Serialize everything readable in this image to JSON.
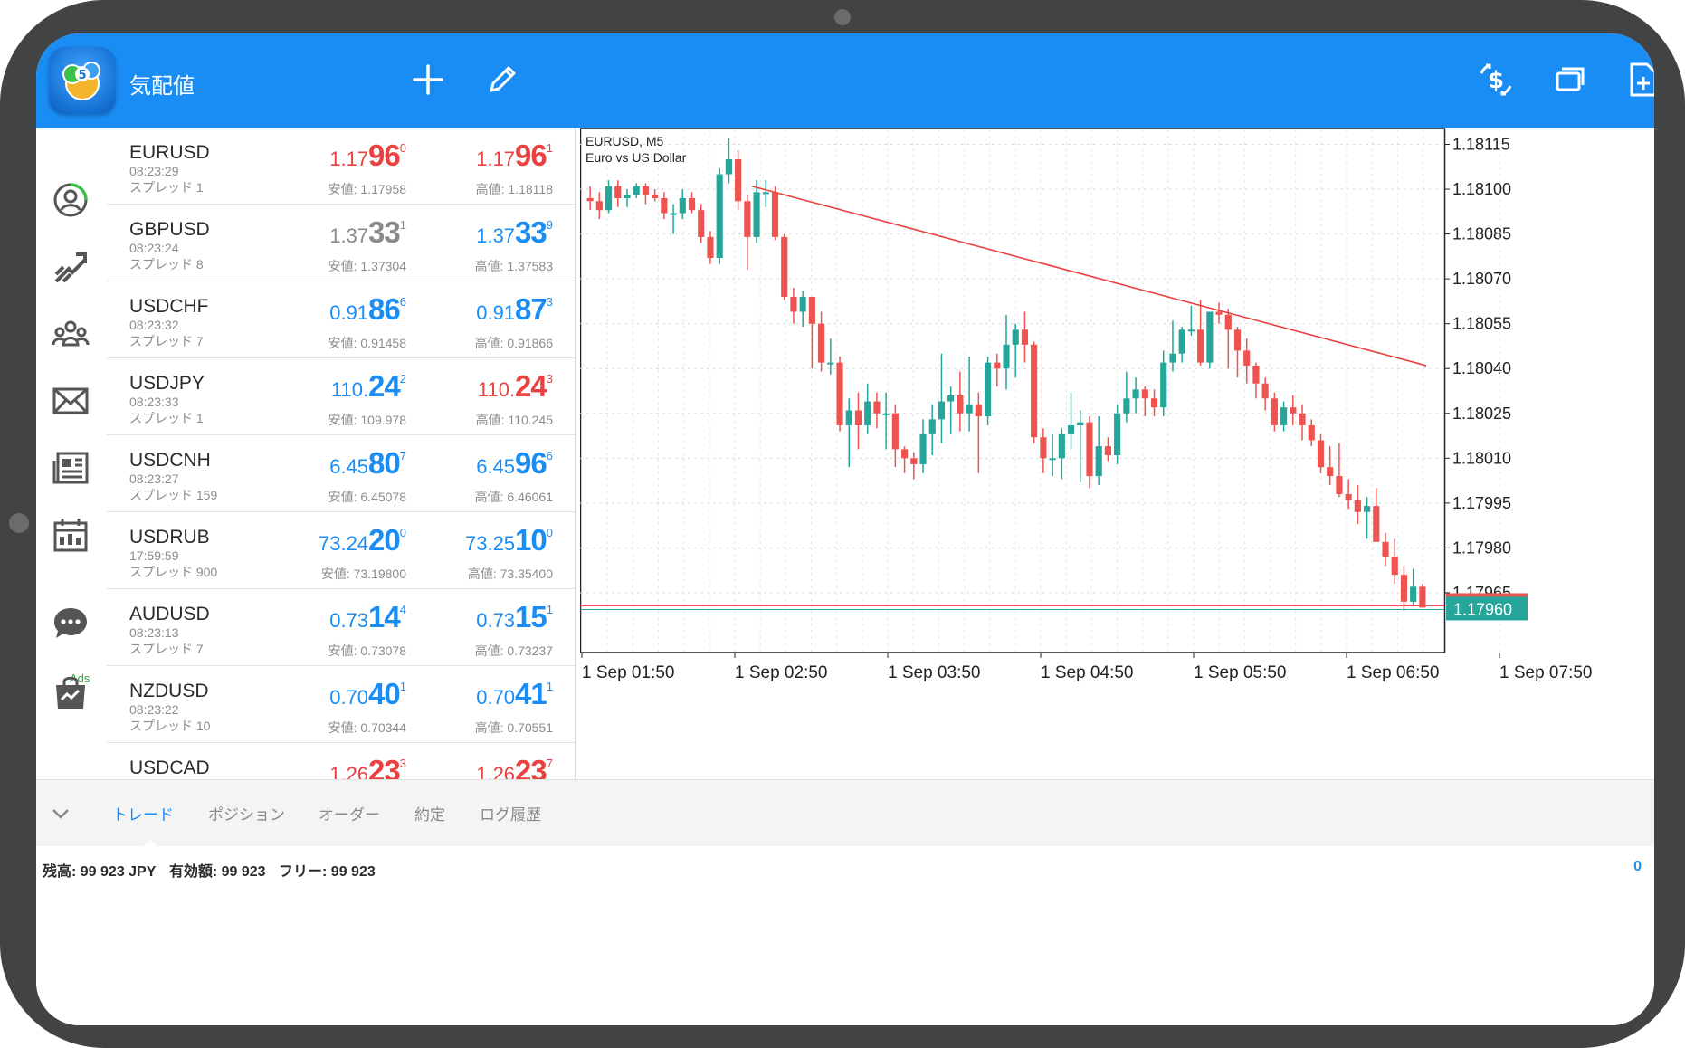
{
  "header": {
    "title": "気配値",
    "icons": [
      "plus-icon",
      "pencil-icon",
      "dollar-exchange-icon",
      "windows-icon",
      "add-document-icon"
    ]
  },
  "sidebar": {
    "icons": [
      "quotes-icon",
      "chart-icon",
      "community-icon",
      "mail-icon",
      "news-icon",
      "calendar-icon",
      "chat-icon",
      "market-bag-icon"
    ],
    "ads_label": "Ads"
  },
  "quotes": [
    {
      "symbol": "EURUSD",
      "time": "08:23:29",
      "spread": "スプレッド 1",
      "bid": {
        "pre": "1.17",
        "big": "96",
        "sup": "0",
        "dir": "down"
      },
      "ask": {
        "pre": "1.17",
        "big": "96",
        "sup": "1",
        "dir": "down"
      },
      "low": "安値: 1.17958",
      "high": "高値: 1.18118"
    },
    {
      "symbol": "GBPUSD",
      "time": "08:23:24",
      "spread": "スプレッド 8",
      "bid": {
        "pre": "1.37",
        "big": "33",
        "sup": "1",
        "dir": "flat"
      },
      "ask": {
        "pre": "1.37",
        "big": "33",
        "sup": "9",
        "dir": "up"
      },
      "low": "安値: 1.37304",
      "high": "高値: 1.37583"
    },
    {
      "symbol": "USDCHF",
      "time": "08:23:32",
      "spread": "スプレッド 7",
      "bid": {
        "pre": "0.91",
        "big": "86",
        "sup": "6",
        "dir": "up"
      },
      "ask": {
        "pre": "0.91",
        "big": "87",
        "sup": "3",
        "dir": "up"
      },
      "low": "安値: 0.91458",
      "high": "高値: 0.91866"
    },
    {
      "symbol": "USDJPY",
      "time": "08:23:33",
      "spread": "スプレッド 1",
      "bid": {
        "pre": "110.",
        "big": "24",
        "sup": "2",
        "dir": "up"
      },
      "ask": {
        "pre": "110.",
        "big": "24",
        "sup": "3",
        "dir": "down"
      },
      "low": "安値: 109.978",
      "high": "高値: 110.245"
    },
    {
      "symbol": "USDCNH",
      "time": "08:23:27",
      "spread": "スプレッド 159",
      "bid": {
        "pre": "6.45",
        "big": "80",
        "sup": "7",
        "dir": "up"
      },
      "ask": {
        "pre": "6.45",
        "big": "96",
        "sup": "6",
        "dir": "up"
      },
      "low": "安値: 6.45078",
      "high": "高値: 6.46061"
    },
    {
      "symbol": "USDRUB",
      "time": "17:59:59",
      "spread": "スプレッド 900",
      "bid": {
        "pre": "73.24",
        "big": "20",
        "sup": "0",
        "dir": "up"
      },
      "ask": {
        "pre": "73.25",
        "big": "10",
        "sup": "0",
        "dir": "up"
      },
      "low": "安値: 73.19800",
      "high": "高値: 73.35400"
    },
    {
      "symbol": "AUDUSD",
      "time": "08:23:13",
      "spread": "スプレッド 7",
      "bid": {
        "pre": "0.73",
        "big": "14",
        "sup": "4",
        "dir": "up"
      },
      "ask": {
        "pre": "0.73",
        "big": "15",
        "sup": "1",
        "dir": "up"
      },
      "low": "安値: 0.73078",
      "high": "高値: 0.73237"
    },
    {
      "symbol": "NZDUSD",
      "time": "08:23:22",
      "spread": "スプレッド 10",
      "bid": {
        "pre": "0.70",
        "big": "40",
        "sup": "1",
        "dir": "up"
      },
      "ask": {
        "pre": "0.70",
        "big": "41",
        "sup": "1",
        "dir": "up"
      },
      "low": "安値: 0.70344",
      "high": "高値: 0.70551"
    },
    {
      "symbol": "USDCAD",
      "time": "",
      "spread": "",
      "bid": {
        "pre": "1.26",
        "big": "23",
        "sup": "3",
        "dir": "down"
      },
      "ask": {
        "pre": "1.26",
        "big": "23",
        "sup": "7",
        "dir": "down"
      },
      "low": "",
      "high": ""
    }
  ],
  "colors": {
    "up": "#1a8df5",
    "down": "#e8413f",
    "flat": "#8a8a8a",
    "bull": "#26a69a",
    "bear": "#ef5350"
  },
  "chart_data": {
    "type": "candlestick",
    "symbol_label": "EURUSD, M5",
    "description": "Euro vs US Dollar",
    "ylim": [
      1.17945,
      1.1812
    ],
    "y_ticks": [
      "1.18115",
      "1.18100",
      "1.18085",
      "1.18070",
      "1.18055",
      "1.18040",
      "1.18025",
      "1.18010",
      "1.17995",
      "1.17980",
      "1.17965"
    ],
    "x_ticks": [
      "1 Sep 01:50",
      "1 Sep 02:50",
      "1 Sep 03:50",
      "1 Sep 04:50",
      "1 Sep 05:50",
      "1 Sep 06:50",
      "1 Sep 07:50"
    ],
    "current_price": "1.17960",
    "grid": true,
    "trendline": {
      "start_index": 18,
      "start_price": 1.18101,
      "end_index": 116,
      "end_price": 1.18041
    },
    "ohlc": [
      [
        1.18097,
        1.18101,
        1.18093,
        1.18096
      ],
      [
        1.18096,
        1.18099,
        1.1809,
        1.18093
      ],
      [
        1.18093,
        1.18103,
        1.18092,
        1.18101
      ],
      [
        1.18101,
        1.18103,
        1.18094,
        1.18097
      ],
      [
        1.18097,
        1.181,
        1.18094,
        1.18098
      ],
      [
        1.18098,
        1.18102,
        1.18097,
        1.18101
      ],
      [
        1.18101,
        1.18102,
        1.18095,
        1.18098
      ],
      [
        1.18098,
        1.181,
        1.18096,
        1.18097
      ],
      [
        1.18097,
        1.18099,
        1.1809,
        1.18092
      ],
      [
        1.18092,
        1.18095,
        1.18085,
        1.18092
      ],
      [
        1.18092,
        1.181,
        1.1809,
        1.18097
      ],
      [
        1.18097,
        1.18099,
        1.18092,
        1.18093
      ],
      [
        1.18093,
        1.18095,
        1.18082,
        1.18084
      ],
      [
        1.18084,
        1.18086,
        1.18075,
        1.18077
      ],
      [
        1.18077,
        1.18107,
        1.18075,
        1.18105
      ],
      [
        1.18105,
        1.18117,
        1.18102,
        1.1811
      ],
      [
        1.1811,
        1.18113,
        1.18093,
        1.18096
      ],
      [
        1.18096,
        1.18098,
        1.18073,
        1.18084
      ],
      [
        1.18084,
        1.18103,
        1.18082,
        1.18099
      ],
      [
        1.18099,
        1.18103,
        1.18094,
        1.18099
      ],
      [
        1.18099,
        1.18101,
        1.18083,
        1.18084
      ],
      [
        1.18084,
        1.18085,
        1.18063,
        1.18064
      ],
      [
        1.18064,
        1.18067,
        1.18055,
        1.18059
      ],
      [
        1.18059,
        1.18066,
        1.18054,
        1.18064
      ],
      [
        1.18064,
        1.18064,
        1.1804,
        1.18055
      ],
      [
        1.18055,
        1.18059,
        1.18039,
        1.18042
      ],
      [
        1.18042,
        1.1805,
        1.18038,
        1.18042
      ],
      [
        1.18042,
        1.18044,
        1.18019,
        1.18021
      ],
      [
        1.18021,
        1.1803,
        1.18007,
        1.18026
      ],
      [
        1.18026,
        1.18032,
        1.18013,
        1.18021
      ],
      [
        1.18021,
        1.18035,
        1.18018,
        1.18029
      ],
      [
        1.18029,
        1.18032,
        1.1802,
        1.18025
      ],
      [
        1.18025,
        1.18032,
        1.18013,
        1.18025
      ],
      [
        1.18025,
        1.18028,
        1.18007,
        1.18013
      ],
      [
        1.18013,
        1.18014,
        1.18005,
        1.1801
      ],
      [
        1.1801,
        1.18012,
        1.18003,
        1.18008
      ],
      [
        1.18008,
        1.18023,
        1.18005,
        1.18018
      ],
      [
        1.18018,
        1.18028,
        1.18011,
        1.18023
      ],
      [
        1.18023,
        1.18045,
        1.18015,
        1.18029
      ],
      [
        1.18029,
        1.18034,
        1.18018,
        1.18031
      ],
      [
        1.18031,
        1.18039,
        1.18019,
        1.18025
      ],
      [
        1.18025,
        1.18044,
        1.18019,
        1.18028
      ],
      [
        1.18028,
        1.18032,
        1.18005,
        1.18024
      ],
      [
        1.18024,
        1.18044,
        1.18021,
        1.18042
      ],
      [
        1.18042,
        1.18045,
        1.18034,
        1.1804
      ],
      [
        1.1804,
        1.18058,
        1.18033,
        1.18048
      ],
      [
        1.18048,
        1.18055,
        1.18037,
        1.18053
      ],
      [
        1.18053,
        1.18059,
        1.18042,
        1.18048
      ],
      [
        1.18048,
        1.18049,
        1.18015,
        1.18017
      ],
      [
        1.18017,
        1.1802,
        1.18005,
        1.1801
      ],
      [
        1.1801,
        1.18018,
        1.18004,
        1.1801
      ],
      [
        1.1801,
        1.1802,
        1.18003,
        1.18018
      ],
      [
        1.18018,
        1.18032,
        1.18013,
        1.18021
      ],
      [
        1.18021,
        1.18026,
        1.18002,
        1.18022
      ],
      [
        1.18022,
        1.18024,
        1.18,
        1.18004
      ],
      [
        1.18004,
        1.18024,
        1.18001,
        1.18014
      ],
      [
        1.18014,
        1.18017,
        1.18009,
        1.18011
      ],
      [
        1.18011,
        1.18028,
        1.18008,
        1.18025
      ],
      [
        1.18025,
        1.18039,
        1.18022,
        1.1803
      ],
      [
        1.1803,
        1.18037,
        1.18025,
        1.18033
      ],
      [
        1.18033,
        1.18034,
        1.18024,
        1.1803
      ],
      [
        1.1803,
        1.18033,
        1.18024,
        1.18027
      ],
      [
        1.18027,
        1.18046,
        1.18024,
        1.18042
      ],
      [
        1.18042,
        1.18056,
        1.18039,
        1.18045
      ],
      [
        1.18045,
        1.18054,
        1.18042,
        1.18053
      ],
      [
        1.18053,
        1.18061,
        1.18051,
        1.18053
      ],
      [
        1.18053,
        1.18063,
        1.18041,
        1.18042
      ],
      [
        1.18042,
        1.18058,
        1.1804,
        1.18059
      ],
      [
        1.18059,
        1.18062,
        1.18055,
        1.18058
      ],
      [
        1.18058,
        1.1806,
        1.1804,
        1.18053
      ],
      [
        1.18053,
        1.18054,
        1.18037,
        1.18046
      ],
      [
        1.18046,
        1.1805,
        1.18035,
        1.18041
      ],
      [
        1.18041,
        1.18042,
        1.1803,
        1.18035
      ],
      [
        1.18035,
        1.18037,
        1.18026,
        1.1803
      ],
      [
        1.1803,
        1.18032,
        1.18019,
        1.18021
      ],
      [
        1.18021,
        1.18029,
        1.18019,
        1.18027
      ],
      [
        1.18027,
        1.18031,
        1.18021,
        1.18025
      ],
      [
        1.18025,
        1.18028,
        1.18016,
        1.18021
      ],
      [
        1.18021,
        1.18023,
        1.18014,
        1.18016
      ],
      [
        1.18016,
        1.18018,
        1.18005,
        1.18007
      ],
      [
        1.18007,
        1.18014,
        1.18001,
        1.18004
      ],
      [
        1.18004,
        1.18015,
        1.17997,
        1.17998
      ],
      [
        1.17998,
        1.18003,
        1.17993,
        1.17996
      ],
      [
        1.17996,
        1.18001,
        1.17988,
        1.17992
      ],
      [
        1.17992,
        1.17997,
        1.17983,
        1.17994
      ],
      [
        1.17994,
        1.18,
        1.17982,
        1.17982
      ],
      [
        1.17982,
        1.17985,
        1.17974,
        1.17977
      ],
      [
        1.17977,
        1.17983,
        1.17968,
        1.17971
      ],
      [
        1.17971,
        1.17974,
        1.17959,
        1.17962
      ],
      [
        1.17962,
        1.17973,
        1.17961,
        1.17967
      ],
      [
        1.17967,
        1.17968,
        1.1796,
        1.1796
      ]
    ]
  },
  "tabs": {
    "items": [
      "トレード",
      "ポジション",
      "オーダー",
      "約定",
      "ログ履歴"
    ],
    "active": 0
  },
  "account": {
    "balance": "残高:  99 923 JPY",
    "equity": "有効額:  99 923",
    "free": "フリー:  99 923",
    "count": "0"
  }
}
